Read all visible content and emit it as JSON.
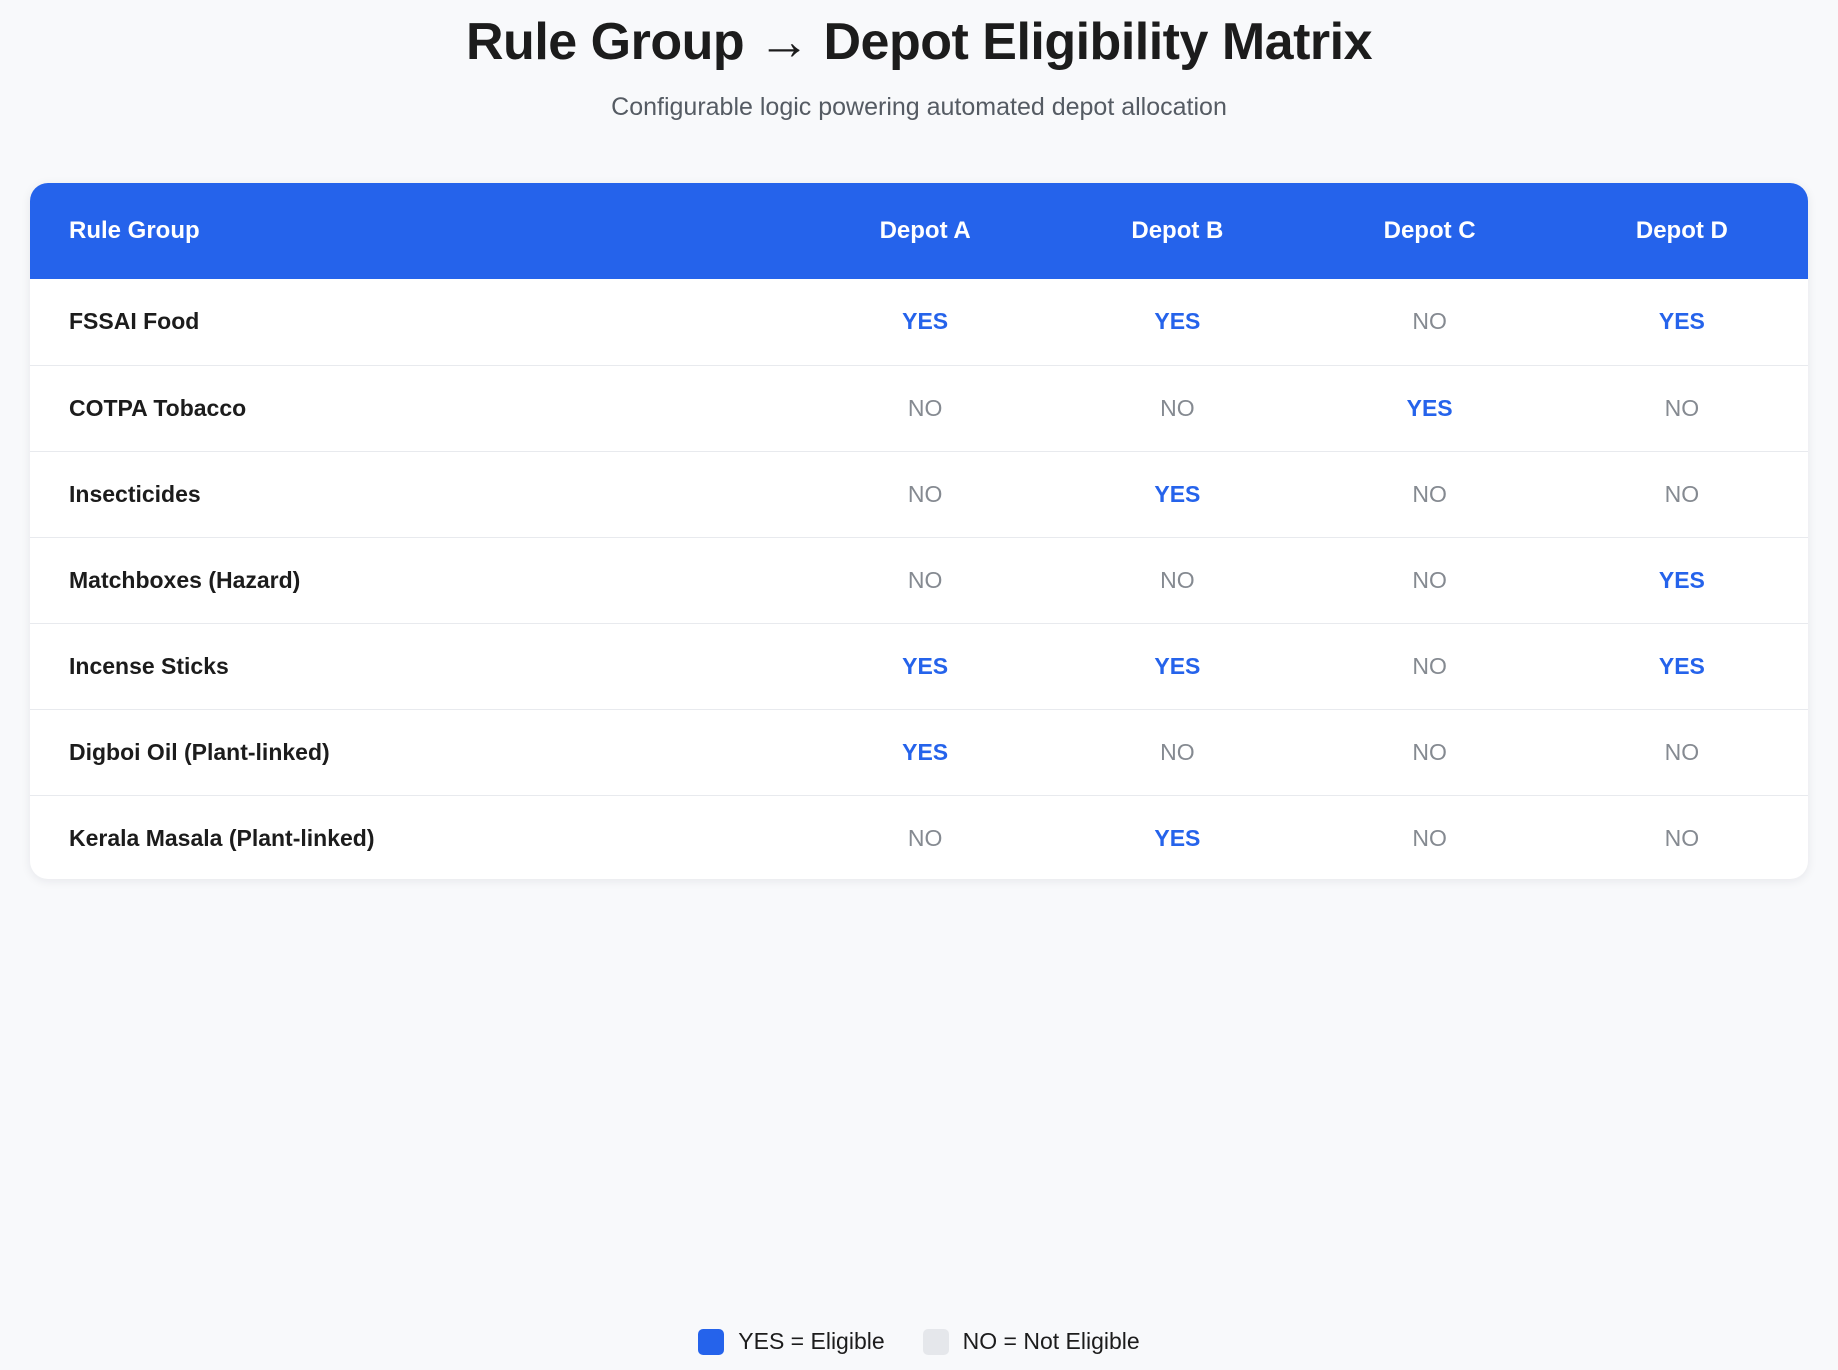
{
  "header": {
    "title": "Rule Group → Depot Eligibility Matrix",
    "subtitle": "Configurable logic powering automated depot allocation"
  },
  "table": {
    "columns": [
      "Rule Group",
      "Depot A",
      "Depot B",
      "Depot C",
      "Depot D"
    ],
    "rows": [
      {
        "name": "FSSAI Food",
        "values": [
          "YES",
          "YES",
          "NO",
          "YES"
        ]
      },
      {
        "name": "COTPA Tobacco",
        "values": [
          "NO",
          "NO",
          "YES",
          "NO"
        ]
      },
      {
        "name": "Insecticides",
        "values": [
          "NO",
          "YES",
          "NO",
          "NO"
        ]
      },
      {
        "name": "Matchboxes (Hazard)",
        "values": [
          "NO",
          "NO",
          "NO",
          "YES"
        ]
      },
      {
        "name": "Incense Sticks",
        "values": [
          "YES",
          "YES",
          "NO",
          "YES"
        ]
      },
      {
        "name": "Digboi Oil (Plant-linked)",
        "values": [
          "YES",
          "NO",
          "NO",
          "NO"
        ]
      },
      {
        "name": "Kerala Masala (Plant-linked)",
        "values": [
          "NO",
          "YES",
          "NO",
          "NO"
        ]
      }
    ]
  },
  "legend": {
    "yes_label": "YES = Eligible",
    "no_label": "NO = Not Eligible"
  },
  "colors": {
    "accent": "#2563eb",
    "no_swatch": "#e5e7eb",
    "no_text": "#858a91",
    "background": "#f8f9fb"
  }
}
